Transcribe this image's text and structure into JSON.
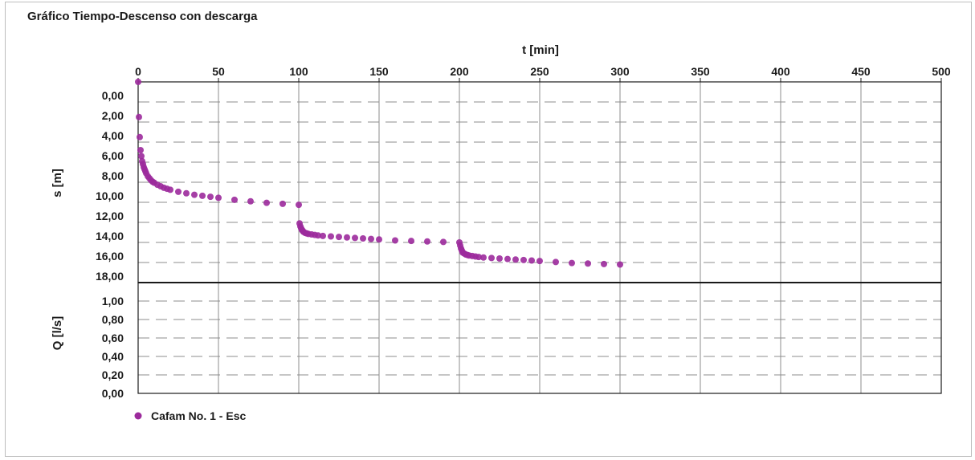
{
  "chart_data": {
    "type": "scatter",
    "title": "Gráfico Tiempo-Descenso con descarga",
    "xlabel": "t [min]",
    "x_axis_position": "top",
    "xlim": [
      0,
      500
    ],
    "x_ticks": [
      "0",
      "50",
      "100",
      "150",
      "200",
      "250",
      "300",
      "350",
      "400",
      "450",
      "500"
    ],
    "x_tick_values": [
      0,
      50,
      100,
      150,
      200,
      250,
      300,
      350,
      400,
      450,
      500
    ],
    "grid": true,
    "legend_position": "bottom-left",
    "panels": [
      {
        "ylabel": "s [m]",
        "ylim": [
          0,
          20
        ],
        "y_inverted": true,
        "y_ticks": [
          "0,00",
          "2,00",
          "4,00",
          "6,00",
          "8,00",
          "10,00",
          "12,00",
          "14,00",
          "16,00",
          "18,00"
        ],
        "y_tick_values": [
          0,
          2,
          4,
          6,
          8,
          10,
          12,
          14,
          16,
          18
        ]
      },
      {
        "ylabel": "Q [l/s]",
        "ylim": [
          0,
          1.2
        ],
        "y_inverted": false,
        "y_ticks": [
          "1,00",
          "0,80",
          "0,60",
          "0,40",
          "0,20",
          "0,00"
        ],
        "y_tick_values": [
          1.0,
          0.8,
          0.6,
          0.4,
          0.2,
          0.0
        ]
      }
    ],
    "series": [
      {
        "name": "Cafam No. 1 - Esc",
        "color": "#9c2a9c",
        "x": [
          0,
          0.5,
          1,
          1.5,
          2,
          2.5,
          3,
          3.5,
          4,
          4.5,
          5,
          6,
          7,
          8,
          9,
          10,
          12,
          14,
          16,
          18,
          20,
          25,
          30,
          35,
          40,
          45,
          50,
          60,
          70,
          80,
          90,
          100,
          100.5,
          101,
          101.5,
          102,
          102.5,
          103,
          104,
          105,
          106,
          108,
          110,
          112,
          115,
          120,
          125,
          130,
          135,
          140,
          145,
          150,
          160,
          170,
          180,
          190,
          200,
          200.5,
          201,
          201.5,
          202,
          203,
          204,
          205,
          206,
          208,
          210,
          212,
          215,
          220,
          225,
          230,
          235,
          240,
          245,
          250,
          260,
          270,
          280,
          290,
          300
        ],
        "y": [
          0.0,
          3.5,
          5.5,
          6.8,
          7.4,
          7.9,
          8.2,
          8.5,
          8.7,
          8.9,
          9.1,
          9.4,
          9.6,
          9.8,
          9.95,
          10.05,
          10.25,
          10.4,
          10.55,
          10.65,
          10.75,
          10.95,
          11.1,
          11.25,
          11.35,
          11.45,
          11.55,
          11.75,
          11.9,
          12.05,
          12.15,
          12.25,
          14.1,
          14.4,
          14.6,
          14.75,
          14.85,
          14.95,
          15.05,
          15.1,
          15.15,
          15.2,
          15.25,
          15.3,
          15.35,
          15.4,
          15.45,
          15.5,
          15.55,
          15.6,
          15.65,
          15.7,
          15.8,
          15.85,
          15.9,
          15.95,
          16.0,
          16.3,
          16.6,
          16.8,
          17.0,
          17.1,
          17.2,
          17.25,
          17.3,
          17.35,
          17.4,
          17.45,
          17.5,
          17.55,
          17.6,
          17.65,
          17.7,
          17.75,
          17.8,
          17.85,
          17.95,
          18.05,
          18.1,
          18.15,
          18.2
        ]
      }
    ]
  }
}
